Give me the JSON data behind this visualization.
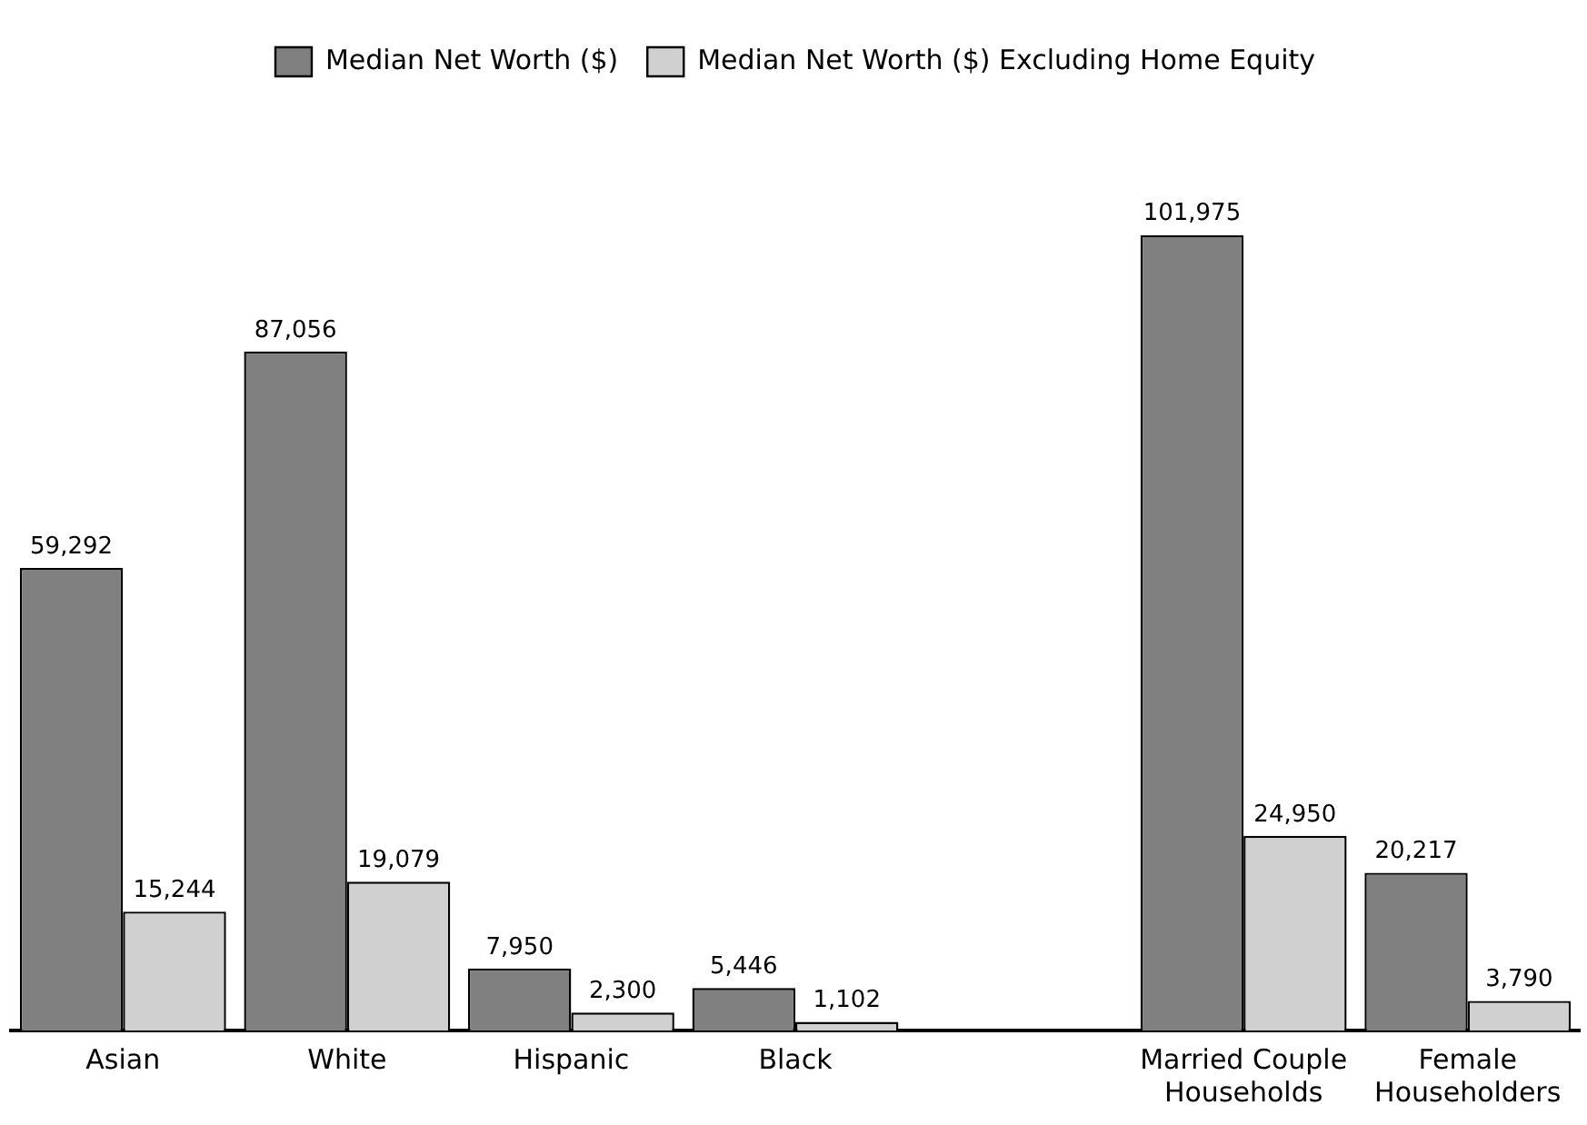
{
  "chart_data": {
    "type": "bar",
    "categories": [
      "Asian",
      "White",
      "Hispanic",
      "Black",
      null,
      "Married Couple Households",
      "Female Householders"
    ],
    "series": [
      {
        "name": "Median Net Worth ($)",
        "color": "#808080",
        "values": [
          59292,
          87056,
          7950,
          5446,
          null,
          101975,
          20217
        ],
        "value_labels": [
          "59,292",
          "87,056",
          "7,950",
          "5,446",
          null,
          "101,975",
          "20,217"
        ]
      },
      {
        "name": "Median Net Worth ($) Excluding Home Equity",
        "color": "#d0d0d0",
        "values": [
          15244,
          19079,
          2300,
          1102,
          null,
          24950,
          3790
        ],
        "value_labels": [
          "15,244",
          "19,079",
          "2,300",
          "1,102",
          null,
          "24,950",
          "3,790"
        ]
      }
    ],
    "legend": "top",
    "grid": false
  }
}
